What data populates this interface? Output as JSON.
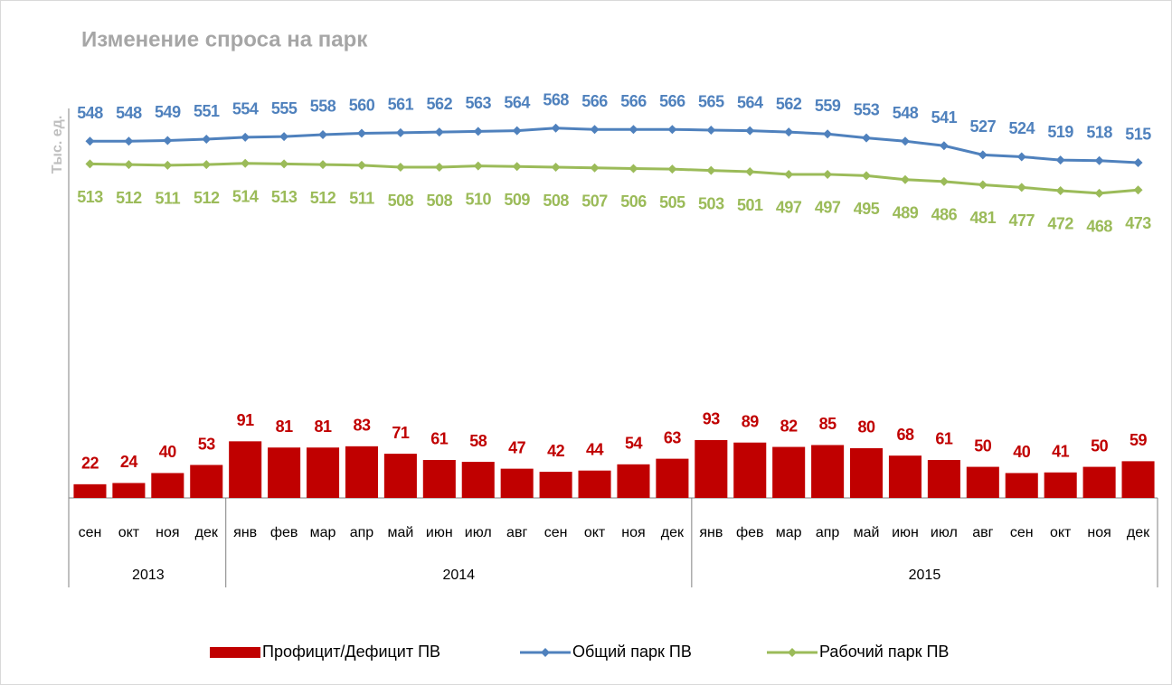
{
  "chart_data": {
    "type": "bar",
    "title": "Изменение спроса на парк",
    "ylabel": "Тыс. ед.",
    "category_groups": [
      {
        "label": "2013",
        "categories": [
          "сен",
          "окт",
          "ноя",
          "дек"
        ]
      },
      {
        "label": "2014",
        "categories": [
          "янв",
          "фев",
          "мар",
          "апр",
          "май",
          "июн",
          "июл",
          "авг",
          "сен",
          "окт",
          "ноя",
          "дек"
        ]
      },
      {
        "label": "2015",
        "categories": [
          "янв",
          "фев",
          "мар",
          "апр",
          "май",
          "июн",
          "июл",
          "авг",
          "сен",
          "окт",
          "ноя",
          "дек"
        ]
      }
    ],
    "ylim": [
      0,
      655
    ],
    "y2lim": [
      0,
      626
    ],
    "series": [
      {
        "name": "Профицит/Дефицит ПВ",
        "type": "bar",
        "color": "#c00000",
        "values": [
          22,
          24,
          40,
          53,
          91,
          81,
          81,
          83,
          71,
          61,
          58,
          47,
          42,
          44,
          54,
          63,
          93,
          89,
          82,
          85,
          80,
          68,
          61,
          50,
          40,
          41,
          50,
          59
        ]
      },
      {
        "name": "Общий парк ПВ",
        "type": "line",
        "axis": "y2",
        "color": "#4f81bd",
        "label_side": "above",
        "values": [
          548,
          548,
          549,
          551,
          554,
          555,
          558,
          560,
          561,
          562,
          563,
          564,
          568,
          566,
          566,
          566,
          565,
          564,
          562,
          559,
          553,
          548,
          541,
          527,
          524,
          519,
          518,
          515
        ]
      },
      {
        "name": "Рабочий парк ПВ",
        "type": "line",
        "axis": "y2",
        "color": "#9bbb59",
        "label_side": "below",
        "values": [
          513,
          512,
          511,
          512,
          514,
          513,
          512,
          511,
          508,
          508,
          510,
          509,
          508,
          507,
          506,
          505,
          503,
          501,
          497,
          497,
          495,
          489,
          486,
          481,
          477,
          472,
          468,
          473
        ]
      }
    ],
    "legend": "bottom"
  }
}
